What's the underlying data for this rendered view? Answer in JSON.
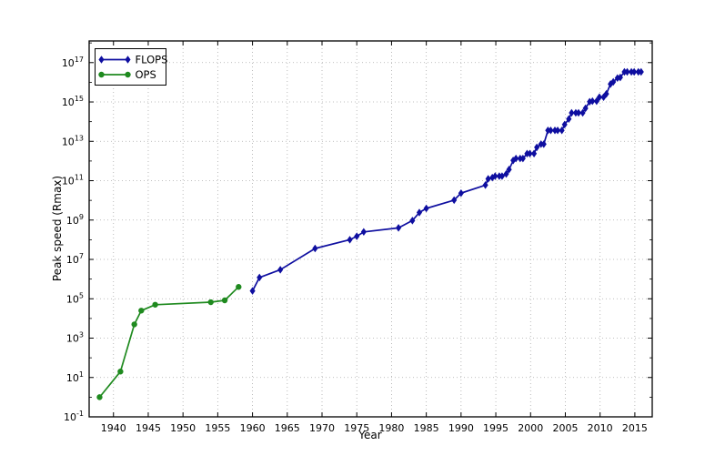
{
  "figure": {
    "background": "#ffffff"
  },
  "axes": {
    "xlabel": "Year",
    "ylabel": "Peak speed (Rmax)",
    "colors": {
      "frame": "#000000",
      "grid": "#aaaaaa",
      "text": "#000000"
    }
  },
  "legend": {
    "items": [
      {
        "label": "FLOPS",
        "series": "FLOPS"
      },
      {
        "label": "OPS",
        "series": "OPS"
      }
    ]
  },
  "chart_data": {
    "type": "line",
    "title": "",
    "xlabel": "Year",
    "ylabel": "Peak speed (Rmax)",
    "grid": "dotted",
    "legend_position": "upper left",
    "x_axis": {
      "min": 1936.5,
      "max": 2017.5,
      "ticks": [
        1940,
        1945,
        1950,
        1955,
        1960,
        1965,
        1970,
        1975,
        1980,
        1985,
        1990,
        1995,
        2000,
        2005,
        2010,
        2015
      ]
    },
    "y_axis": {
      "scale": "log",
      "min_exponent": -1,
      "max_exponent": 18.1,
      "tick_exponents": [
        -1,
        1,
        3,
        5,
        7,
        9,
        11,
        13,
        15,
        17
      ],
      "minor_tick_exponents": [
        0,
        2,
        4,
        6,
        8,
        10,
        12,
        14,
        16,
        18
      ]
    },
    "series": [
      {
        "name": "FLOPS",
        "color": "#0f0fa0",
        "marker": "diamond",
        "points": [
          [
            1960,
            250000.0
          ],
          [
            1961,
            1200000.0
          ],
          [
            1964,
            3000000.0
          ],
          [
            1969,
            36000000.0
          ],
          [
            1974,
            100000000.0
          ],
          [
            1975,
            150000000.0
          ],
          [
            1976,
            250000000.0
          ],
          [
            1981,
            400000000.0
          ],
          [
            1983,
            941000000.0
          ],
          [
            1984,
            2400000000.0
          ],
          [
            1985,
            3900000000.0
          ],
          [
            1989,
            10300000000.0
          ],
          [
            1990,
            23200000000.0
          ],
          [
            1993.5,
            59700000000.0
          ],
          [
            1993.9,
            124500000000.0
          ],
          [
            1994.5,
            143400000000.0
          ],
          [
            1994.9,
            170400000000.0
          ],
          [
            1995.5,
            170400000000.0
          ],
          [
            1995.9,
            170400000000.0
          ],
          [
            1996.5,
            220400000000.0
          ],
          [
            1996.9,
            368200000000.0
          ],
          [
            1997.5,
            1068000000000.0
          ],
          [
            1997.9,
            1338000000000.0
          ],
          [
            1998.5,
            1338000000000.0
          ],
          [
            1998.9,
            1338000000000.0
          ],
          [
            1999.5,
            2379600000000.0
          ],
          [
            1999.9,
            2379600000000.0
          ],
          [
            2000.5,
            2379600000000.0
          ],
          [
            2000.9,
            4938000000000.0
          ],
          [
            2001.5,
            7226000000000.0
          ],
          [
            2001.9,
            7226000000000.0
          ],
          [
            2002.5,
            35860000000000.0
          ],
          [
            2002.9,
            35860000000000.0
          ],
          [
            2003.5,
            35860000000000.0
          ],
          [
            2003.9,
            35860000000000.0
          ],
          [
            2004.5,
            35860000000000.0
          ],
          [
            2004.9,
            70720000000000.0
          ],
          [
            2005.5,
            136800000000000.0
          ],
          [
            2005.9,
            280600000000000.0
          ],
          [
            2006.5,
            280600000000000.0
          ],
          [
            2006.9,
            280600000000000.0
          ],
          [
            2007.5,
            280600000000000.0
          ],
          [
            2007.9,
            478200000000000.0
          ],
          [
            2008.5,
            1026000000000000.0
          ],
          [
            2008.9,
            1105000000000000.0
          ],
          [
            2009.5,
            1105000000000000.0
          ],
          [
            2009.9,
            1759000000000000.0
          ],
          [
            2010.5,
            1759000000000000.0
          ],
          [
            2010.9,
            2566000000000000.0
          ],
          [
            2011.5,
            8162000000000000.0
          ],
          [
            2011.9,
            1.051e+16
          ],
          [
            2012.5,
            1.6325e+16
          ],
          [
            2012.9,
            1.759e+16
          ],
          [
            2013.5,
            3.3863e+16
          ],
          [
            2013.9,
            3.3863e+16
          ],
          [
            2014.5,
            3.3863e+16
          ],
          [
            2014.9,
            3.3863e+16
          ],
          [
            2015.5,
            3.3863e+16
          ],
          [
            2015.9,
            3.3863e+16
          ]
        ]
      },
      {
        "name": "OPS",
        "color": "#1f8a1f",
        "marker": "circle",
        "points": [
          [
            1938,
            1
          ],
          [
            1941,
            20
          ],
          [
            1943,
            5000.0
          ],
          [
            1944,
            25000.0
          ],
          [
            1946,
            50000.0
          ],
          [
            1954,
            67000.0
          ],
          [
            1956,
            83000.0
          ],
          [
            1958,
            400000.0
          ]
        ]
      }
    ]
  }
}
